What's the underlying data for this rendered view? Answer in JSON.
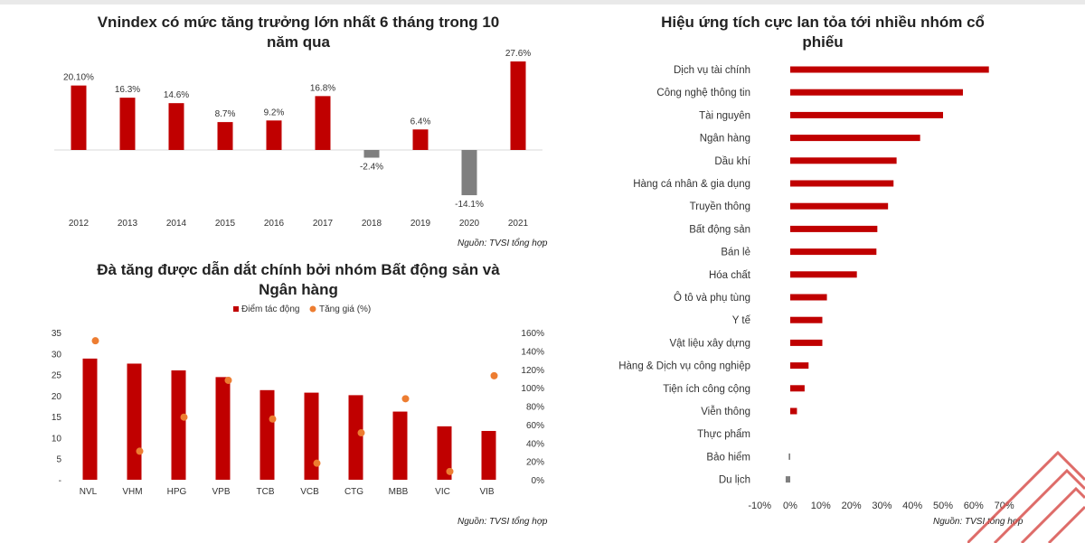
{
  "chart_data": [
    {
      "type": "bar",
      "title": "Vnindex có mức tăng trưởng lớn nhất 6 tháng trong 10 năm qua",
      "categories": [
        "2012",
        "2013",
        "2014",
        "2015",
        "2016",
        "2017",
        "2018",
        "2019",
        "2020",
        "2021"
      ],
      "values": [
        20.1,
        16.3,
        14.6,
        8.7,
        9.2,
        16.8,
        -2.4,
        6.4,
        -14.1,
        27.6
      ],
      "labels": [
        "20.10%",
        "16.3%",
        "14.6%",
        "8.7%",
        "9.2%",
        "16.8%",
        "-2.4%",
        "6.4%",
        "-14.1%",
        "27.6%"
      ],
      "colors": {
        "positive": "#c00000",
        "negative": "#7f7f7f"
      },
      "xlabel": "",
      "ylabel": "",
      "ylim": [
        -15,
        28
      ],
      "source": "Nguồn: TVSI tổng hợp"
    },
    {
      "type": "bar",
      "title": "Đà tăng được dẫn dắt chính bởi nhóm Bất động sản và Ngân hàng",
      "categories": [
        "NVL",
        "VHM",
        "HPG",
        "VPB",
        "TCB",
        "VCB",
        "CTG",
        "MBB",
        "VIC",
        "VIB"
      ],
      "series": [
        {
          "name": "Điểm tác động",
          "type": "bar",
          "axis": "left",
          "color": "#c00000",
          "values": [
            28.8,
            27.6,
            26.0,
            24.4,
            21.3,
            20.7,
            20.1,
            16.2,
            12.7,
            11.6
          ]
        },
        {
          "name": "Tăng giá (%)",
          "type": "scatter",
          "axis": "right",
          "color": "#ed7d31",
          "values": [
            151,
            31,
            68,
            108,
            66,
            18,
            51,
            88,
            9,
            113
          ]
        }
      ],
      "y_left": {
        "min": 0,
        "max": 35,
        "ticks": [
          "-",
          "5",
          "10",
          "15",
          "20",
          "25",
          "30",
          "35"
        ]
      },
      "y_right": {
        "min": 0,
        "max": 160,
        "ticks": [
          "0%",
          "20%",
          "40%",
          "60%",
          "80%",
          "100%",
          "120%",
          "140%",
          "160%"
        ]
      },
      "source": "Nguồn: TVSI tổng hợp"
    },
    {
      "type": "bar",
      "orientation": "horizontal",
      "title": "Hiệu ứng tích cực lan tỏa tới nhiều nhóm cổ phiếu",
      "categories": [
        "Dịch vụ tài chính",
        "Công nghệ thông tin",
        "Tài nguyên",
        "Ngân hàng",
        "Dầu khí",
        "Hàng cá nhân & gia dụng",
        "Truyền thông",
        "Bất động sản",
        "Bán lẻ",
        "Hóa chất",
        "Ô tô và phụ tùng",
        "Y tế",
        "Vật liệu xây dựng",
        "Hàng & Dịch vụ công nghiệp",
        "Tiện ích công cộng",
        "Viễn thông",
        "Thực phẩm",
        "Bảo hiểm",
        "Du lịch"
      ],
      "values": [
        65,
        56.5,
        50,
        42.5,
        34.8,
        33.8,
        32,
        28.5,
        28.2,
        21.8,
        12,
        10.5,
        10.5,
        6,
        4.7,
        2.2,
        0,
        -0.5,
        -1.5
      ],
      "colors": {
        "positive": "#c00000",
        "negative": "#7f7f7f"
      },
      "xlim": [
        -10,
        70
      ],
      "x_ticks": [
        "-10%",
        "0%",
        "10%",
        "20%",
        "30%",
        "40%",
        "50%",
        "60%",
        "70%"
      ],
      "source": "Nguồn: TVSI tổng hợp"
    }
  ]
}
